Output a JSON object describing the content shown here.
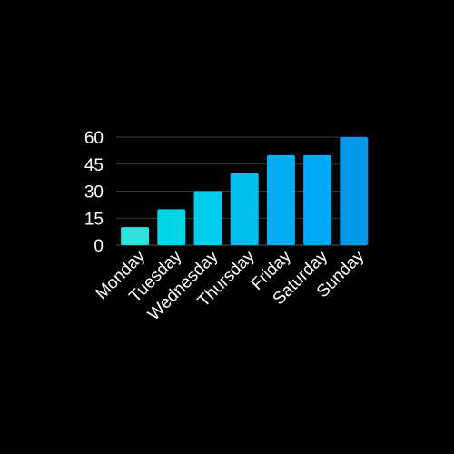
{
  "chart_data": {
    "type": "bar",
    "title": "",
    "xlabel": "",
    "ylabel": "",
    "categories": [
      "Monday",
      "Tuesday",
      "Wednesday",
      "Thursday",
      "Friday",
      "Saturday",
      "Sunday"
    ],
    "values": [
      10,
      20,
      30,
      40,
      50,
      50,
      60
    ],
    "ylim": [
      0,
      60
    ],
    "yticks": [
      0,
      15,
      30,
      45,
      60
    ],
    "grid": true,
    "legend": "none",
    "bar_colors": [
      "#2ee0d8",
      "#00d6e6",
      "#00cde9",
      "#00bfef",
      "#00b0f2",
      "#00a8f5",
      "#0597e8"
    ],
    "background_color": "#000000",
    "text_color": "#ffffff"
  }
}
